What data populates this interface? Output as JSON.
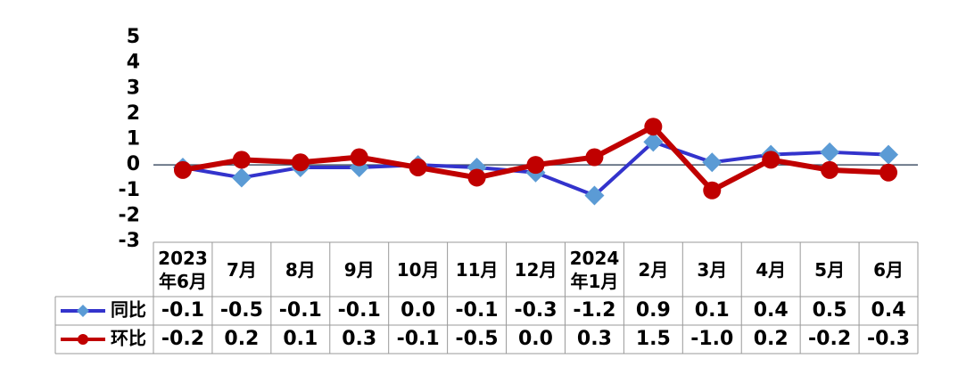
{
  "chart_data": {
    "type": "line",
    "categories": [
      "2023年6月",
      "7月",
      "8月",
      "9月",
      "10月",
      "11月",
      "12月",
      "2024年1月",
      "2月",
      "3月",
      "4月",
      "5月",
      "6月"
    ],
    "series": [
      {
        "name": "同比",
        "color": "#3333cc",
        "marker": "diamond",
        "marker_color": "#5b9bd5",
        "values": [
          -0.1,
          -0.5,
          -0.1,
          -0.1,
          0.0,
          -0.1,
          -0.3,
          -1.2,
          0.9,
          0.1,
          0.4,
          0.5,
          0.4
        ],
        "value_labels": [
          "-0.1",
          "-0.5",
          "-0.1",
          "-0.1",
          "0.0",
          "-0.1",
          "-0.3",
          "-1.2",
          "0.9",
          "0.1",
          "0.4",
          "0.5",
          "0.4"
        ]
      },
      {
        "name": "环比",
        "color": "#c00000",
        "marker": "circle",
        "marker_color": "#c00000",
        "values": [
          -0.2,
          0.2,
          0.1,
          0.3,
          -0.1,
          -0.5,
          0.0,
          0.3,
          1.5,
          -1.0,
          0.2,
          -0.2,
          -0.3
        ],
        "value_labels": [
          "-0.2",
          "0.2",
          "0.1",
          "0.3",
          "-0.1",
          "-0.5",
          "0.0",
          "0.3",
          "1.5",
          "-1.0",
          "0.2",
          "-0.2",
          "-0.3"
        ]
      }
    ],
    "ylim": [
      -3,
      5
    ],
    "yticks": [
      -3,
      -2,
      -1,
      0,
      1,
      2,
      3,
      4,
      5
    ],
    "grid": false,
    "zero_line": true
  }
}
